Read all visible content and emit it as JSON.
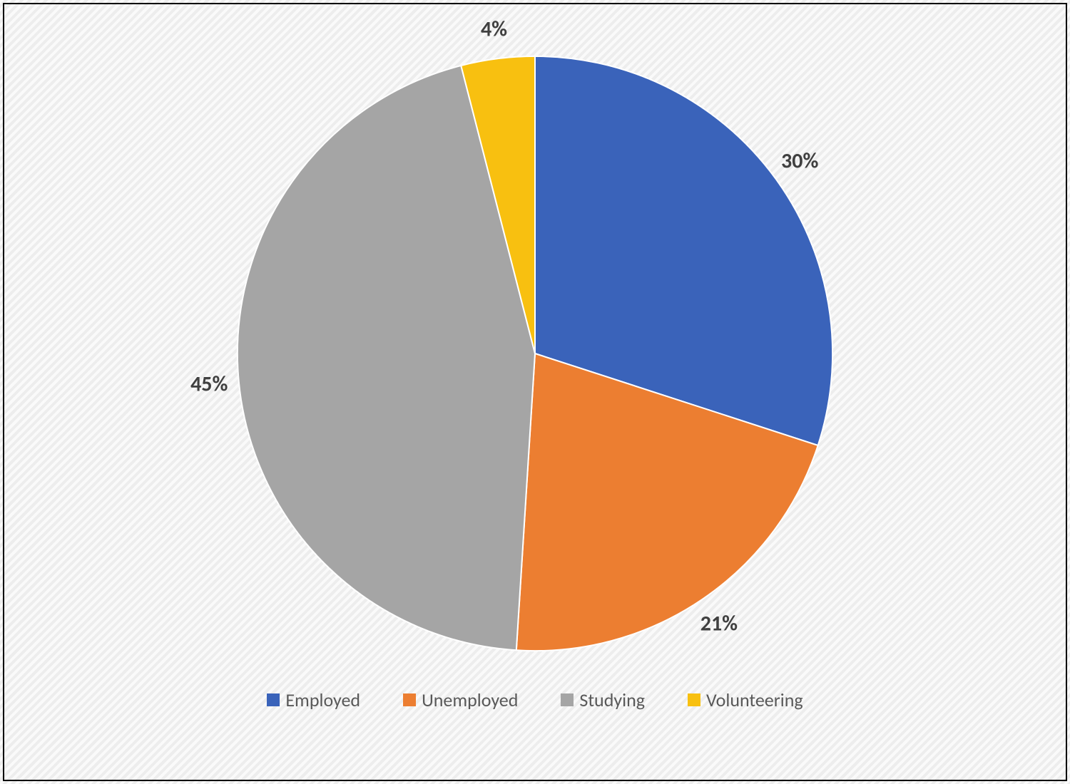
{
  "chart": {
    "type": "pie",
    "background_color": "#f2f2f2",
    "border_color": "#000000",
    "border_width": 2,
    "pie_radius_percent": 50,
    "start_angle_deg": -90,
    "slices": [
      {
        "label": "Employed",
        "value": 30,
        "display": "30%",
        "color": "#3a63ba"
      },
      {
        "label": "Unemployed",
        "value": 21,
        "display": "21%",
        "color": "#ec7e31"
      },
      {
        "label": "Studying",
        "value": 45,
        "display": "45%",
        "color": "#a5a5a5"
      },
      {
        "label": "Volunteering",
        "value": 4,
        "display": "4%",
        "color": "#f8c010"
      }
    ],
    "data_label": {
      "font_size": 30,
      "font_weight": 700,
      "color": "#404040",
      "offset_radius_factor": 1.1
    },
    "legend": {
      "position": "bottom",
      "swatch_size": 18,
      "font_size": 26,
      "text_color": "#595959",
      "gap": 60
    }
  }
}
